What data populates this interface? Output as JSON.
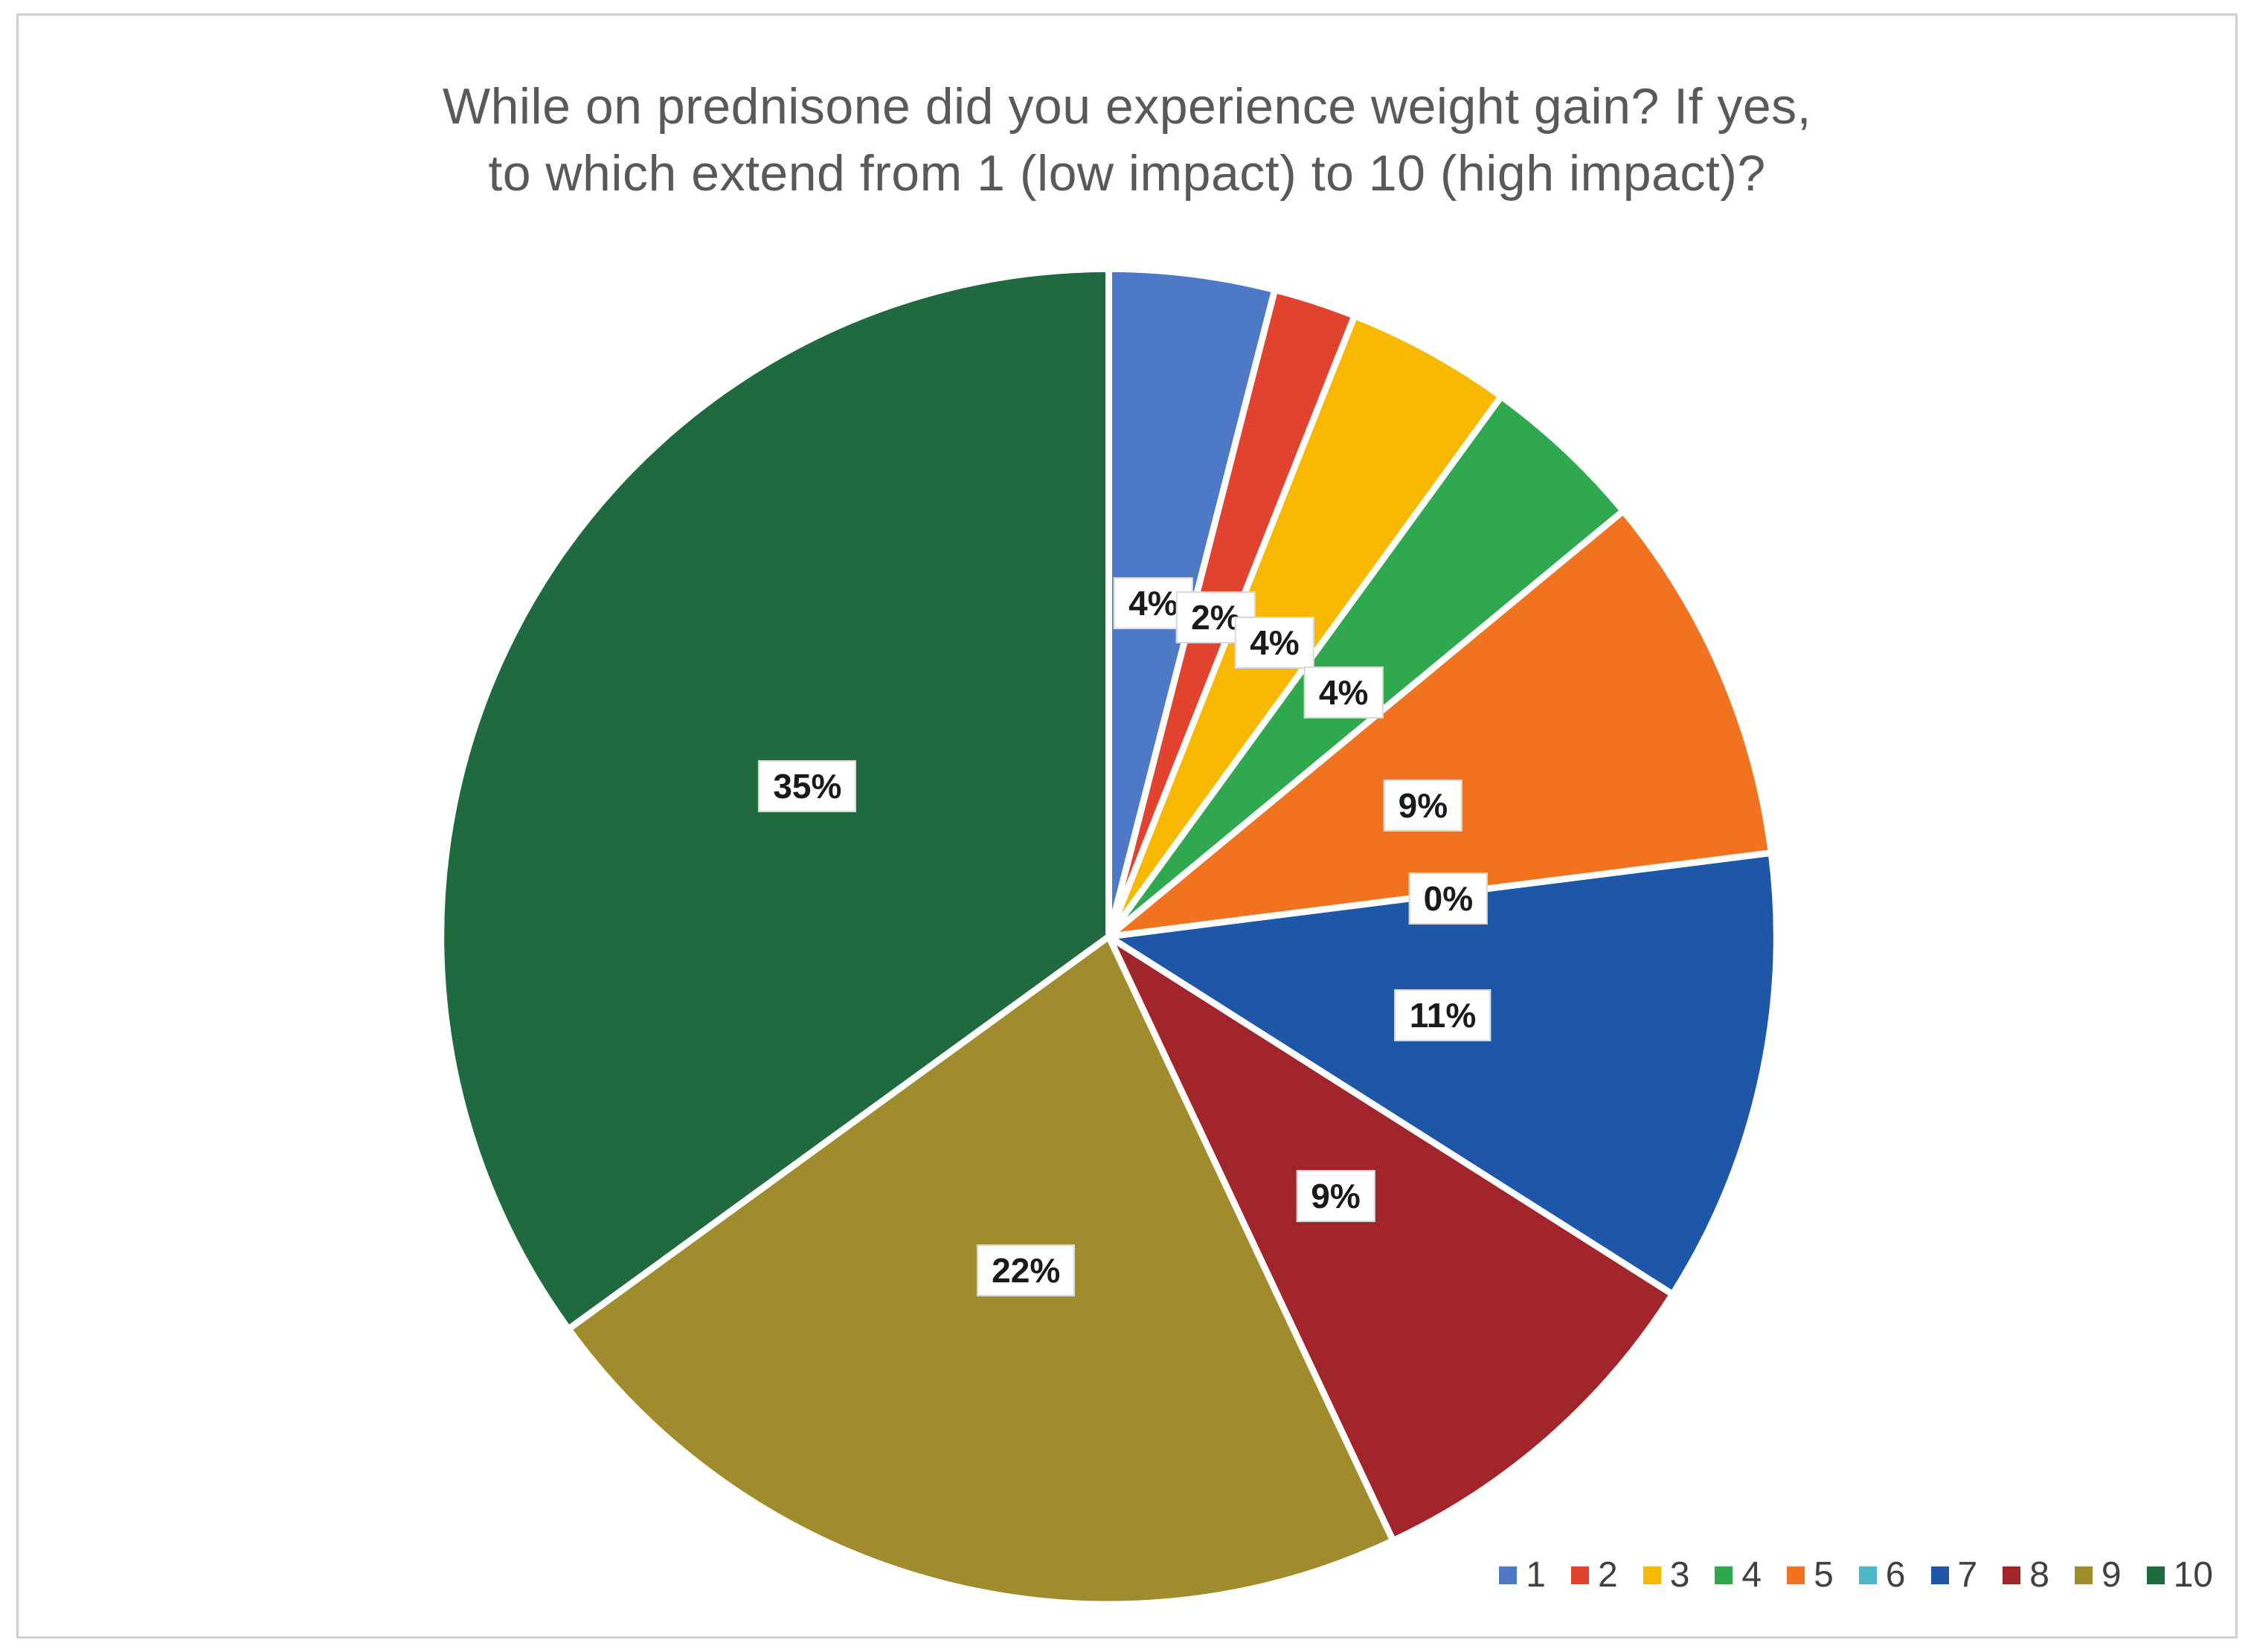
{
  "page": {
    "background": "#ffffff",
    "frame_border_color": "#cfcfcf"
  },
  "chart_data": {
    "type": "pie",
    "title": "While on prednisone did you experience weight gain? If yes,\nto which extend from 1 (low impact) to 10 (high impact)?",
    "title_color": "#595959",
    "categories": [
      "1",
      "2",
      "3",
      "4",
      "5",
      "6",
      "7",
      "8",
      "9",
      "10"
    ],
    "values": [
      4,
      2,
      4,
      4,
      9,
      0,
      11,
      9,
      22,
      35
    ],
    "labels": [
      "4%",
      "2%",
      "4%",
      "4%",
      "9%",
      "0%",
      "11%",
      "9%",
      "22%",
      "35%"
    ],
    "colors": [
      "#4D79C7",
      "#E2432F",
      "#F9B800",
      "#2FA84F",
      "#F2731F",
      "#4EB8C9",
      "#1E56A8",
      "#A1252B",
      "#A08C2C",
      "#1F6B3F"
    ],
    "start_angle_deg": 0,
    "direction": "clockwise",
    "slice_border_color": "#ffffff",
    "data_label_background": "#ffffff",
    "data_label_border": "#d9d9d9",
    "data_label_text_color": "#1a1a1a",
    "legend_position": "bottom-right",
    "legend_text_color": "#404040",
    "grid": false
  }
}
